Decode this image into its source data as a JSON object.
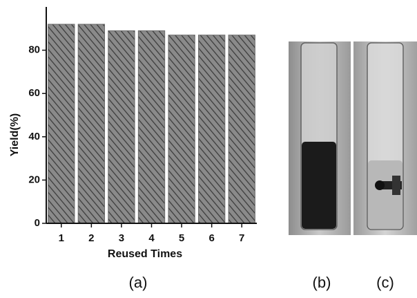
{
  "chart_data": {
    "type": "bar",
    "x_label": "Reused Times",
    "y_label": "Yield(%)",
    "categories": [
      "1",
      "2",
      "3",
      "4",
      "5",
      "6",
      "7"
    ],
    "values": [
      92,
      92,
      89,
      89,
      87,
      87,
      87
    ],
    "color": "#6e6e6e",
    "ylim": [
      0,
      100
    ],
    "yticks": [
      0,
      20,
      40,
      60,
      80
    ]
  },
  "panels": {
    "a": "(a)",
    "b": "(b)",
    "c": "(c)"
  }
}
